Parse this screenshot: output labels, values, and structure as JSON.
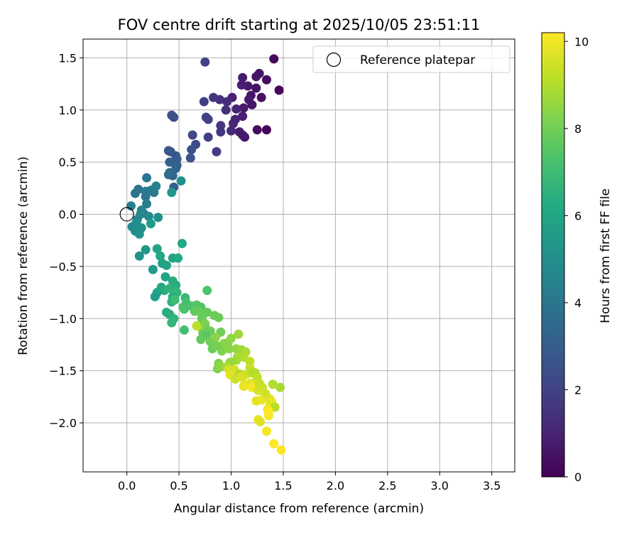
{
  "chart_data": {
    "type": "scatter",
    "title": "FOV centre drift starting at 2025/10/05 23:51:11",
    "xlabel": "Angular distance from reference (arcmin)",
    "ylabel": "Rotation from reference (arcmin)",
    "xlim": [
      -0.42,
      3.72
    ],
    "ylim": [
      -2.47,
      1.68
    ],
    "xticks": [
      0.0,
      0.5,
      1.0,
      1.5,
      2.0,
      2.5,
      3.0,
      3.5
    ],
    "xtick_labels": [
      "0.0",
      "0.5",
      "1.0",
      "1.5",
      "2.0",
      "2.5",
      "3.0",
      "3.5"
    ],
    "yticks": [
      -2.0,
      -1.5,
      -1.0,
      -0.5,
      0.0,
      0.5,
      1.0,
      1.5
    ],
    "ytick_labels": [
      "−2.0",
      "−1.5",
      "−1.0",
      "−0.5",
      "0.0",
      "0.5",
      "1.0",
      "1.5"
    ],
    "grid": true,
    "legend": {
      "position": "top-right",
      "label": "Reference platepar"
    },
    "reference_point": {
      "x": 0.0,
      "y": 0.0
    },
    "colorbar": {
      "label": "Hours from first FF file",
      "colormap": "viridis",
      "range": [
        0,
        10.2
      ],
      "ticks": [
        0,
        2,
        4,
        6,
        8,
        10
      ],
      "tick_labels": [
        "0",
        "2",
        "4",
        "6",
        "8",
        "10"
      ]
    },
    "series": [
      {
        "points": [
          {
            "x": 1.41,
            "y": 1.49,
            "c": 0.3
          },
          {
            "x": 1.46,
            "y": 1.19,
            "c": 0.2
          },
          {
            "x": 1.34,
            "y": 1.29,
            "c": 0.4
          },
          {
            "x": 1.27,
            "y": 1.35,
            "c": 0.5
          },
          {
            "x": 1.24,
            "y": 1.32,
            "c": 0.6
          },
          {
            "x": 1.11,
            "y": 1.31,
            "c": 0.8
          },
          {
            "x": 1.16,
            "y": 1.23,
            "c": 0.7
          },
          {
            "x": 1.1,
            "y": 1.24,
            "c": 0.9
          },
          {
            "x": 1.19,
            "y": 1.14,
            "c": 0.6
          },
          {
            "x": 1.24,
            "y": 1.21,
            "c": 0.5
          },
          {
            "x": 1.29,
            "y": 1.12,
            "c": 0.4
          },
          {
            "x": 1.2,
            "y": 1.05,
            "c": 0.6
          },
          {
            "x": 1.17,
            "y": 1.1,
            "c": 0.7
          },
          {
            "x": 1.12,
            "y": 1.02,
            "c": 0.8
          },
          {
            "x": 1.01,
            "y": 1.12,
            "c": 0.9
          },
          {
            "x": 1.05,
            "y": 1.01,
            "c": 1.0
          },
          {
            "x": 1.11,
            "y": 0.94,
            "c": 0.9
          },
          {
            "x": 1.02,
            "y": 0.87,
            "c": 1.1
          },
          {
            "x": 1.04,
            "y": 0.91,
            "c": 1.0
          },
          {
            "x": 1.0,
            "y": 0.8,
            "c": 1.2
          },
          {
            "x": 1.08,
            "y": 0.79,
            "c": 0.8
          },
          {
            "x": 1.13,
            "y": 0.74,
            "c": 0.6
          },
          {
            "x": 1.11,
            "y": 0.76,
            "c": 0.7
          },
          {
            "x": 1.25,
            "y": 0.81,
            "c": 0.3
          },
          {
            "x": 1.34,
            "y": 0.81,
            "c": 0.1
          },
          {
            "x": 0.89,
            "y": 1.1,
            "c": 1.4
          },
          {
            "x": 0.96,
            "y": 1.08,
            "c": 1.3
          },
          {
            "x": 0.95,
            "y": 1.0,
            "c": 1.4
          },
          {
            "x": 0.83,
            "y": 1.12,
            "c": 1.6
          },
          {
            "x": 0.75,
            "y": 1.46,
            "c": 2.0
          },
          {
            "x": 0.74,
            "y": 1.08,
            "c": 1.9
          },
          {
            "x": 0.76,
            "y": 0.93,
            "c": 2.0
          },
          {
            "x": 0.78,
            "y": 0.91,
            "c": 1.9
          },
          {
            "x": 0.9,
            "y": 0.85,
            "c": 1.6
          },
          {
            "x": 0.9,
            "y": 0.79,
            "c": 1.6
          },
          {
            "x": 0.78,
            "y": 0.74,
            "c": 1.9
          },
          {
            "x": 0.86,
            "y": 0.6,
            "c": 1.8
          },
          {
            "x": 0.43,
            "y": 0.95,
            "c": 2.4
          },
          {
            "x": 0.45,
            "y": 0.93,
            "c": 2.4
          },
          {
            "x": 0.63,
            "y": 0.76,
            "c": 2.2
          },
          {
            "x": 0.66,
            "y": 0.67,
            "c": 2.3
          },
          {
            "x": 0.62,
            "y": 0.62,
            "c": 2.5
          },
          {
            "x": 0.61,
            "y": 0.54,
            "c": 2.7
          },
          {
            "x": 0.4,
            "y": 0.61,
            "c": 2.8
          },
          {
            "x": 0.42,
            "y": 0.6,
            "c": 2.8
          },
          {
            "x": 0.47,
            "y": 0.56,
            "c": 2.7
          },
          {
            "x": 0.48,
            "y": 0.53,
            "c": 2.9
          },
          {
            "x": 0.46,
            "y": 0.5,
            "c": 3.1
          },
          {
            "x": 0.41,
            "y": 0.5,
            "c": 3.2
          },
          {
            "x": 0.48,
            "y": 0.47,
            "c": 3.1
          },
          {
            "x": 0.47,
            "y": 0.44,
            "c": 3.3
          },
          {
            "x": 0.41,
            "y": 0.4,
            "c": 3.5
          },
          {
            "x": 0.44,
            "y": 0.37,
            "c": 3.4
          },
          {
            "x": 0.4,
            "y": 0.38,
            "c": 3.5
          },
          {
            "x": 0.45,
            "y": 0.26,
            "c": 3.0
          },
          {
            "x": 0.52,
            "y": 0.32,
            "c": 5.1
          },
          {
            "x": 0.43,
            "y": 0.21,
            "c": 5.3
          },
          {
            "x": 0.19,
            "y": 0.35,
            "c": 4.0
          },
          {
            "x": 0.11,
            "y": 0.24,
            "c": 3.9
          },
          {
            "x": 0.08,
            "y": 0.2,
            "c": 3.9
          },
          {
            "x": 0.18,
            "y": 0.22,
            "c": 4.1
          },
          {
            "x": 0.23,
            "y": 0.23,
            "c": 4.3
          },
          {
            "x": 0.28,
            "y": 0.27,
            "c": 4.4
          },
          {
            "x": 0.26,
            "y": 0.21,
            "c": 4.2
          },
          {
            "x": 0.18,
            "y": 0.17,
            "c": 4.0
          },
          {
            "x": 0.19,
            "y": 0.1,
            "c": 4.3
          },
          {
            "x": 0.04,
            "y": 0.08,
            "c": 4.4
          },
          {
            "x": 0.14,
            "y": 0.04,
            "c": 4.6
          },
          {
            "x": 0.16,
            "y": 0.01,
            "c": 4.5
          },
          {
            "x": 0.13,
            "y": 0.0,
            "c": 4.7
          },
          {
            "x": 0.21,
            "y": -0.02,
            "c": 4.8
          },
          {
            "x": 0.3,
            "y": -0.03,
            "c": 5.0
          },
          {
            "x": 0.1,
            "y": -0.05,
            "c": 4.7
          },
          {
            "x": 0.09,
            "y": -0.08,
            "c": 4.9
          },
          {
            "x": 0.05,
            "y": -0.12,
            "c": 4.8
          },
          {
            "x": 0.08,
            "y": -0.16,
            "c": 5.0
          },
          {
            "x": 0.14,
            "y": -0.13,
            "c": 5.1
          },
          {
            "x": 0.12,
            "y": -0.19,
            "c": 5.1
          },
          {
            "x": 0.23,
            "y": -0.09,
            "c": 5.6
          },
          {
            "x": 0.53,
            "y": -0.28,
            "c": 6.1
          },
          {
            "x": 0.18,
            "y": -0.34,
            "c": 5.4
          },
          {
            "x": 0.12,
            "y": -0.4,
            "c": 5.2
          },
          {
            "x": 0.29,
            "y": -0.33,
            "c": 5.9
          },
          {
            "x": 0.32,
            "y": -0.4,
            "c": 6.0
          },
          {
            "x": 0.44,
            "y": -0.42,
            "c": 6.0
          },
          {
            "x": 0.49,
            "y": -0.42,
            "c": 6.1
          },
          {
            "x": 0.25,
            "y": -0.53,
            "c": 5.5
          },
          {
            "x": 0.34,
            "y": -0.47,
            "c": 5.8
          },
          {
            "x": 0.38,
            "y": -0.49,
            "c": 5.9
          },
          {
            "x": 0.37,
            "y": -0.6,
            "c": 6.0
          },
          {
            "x": 0.44,
            "y": -0.64,
            "c": 6.3
          },
          {
            "x": 0.33,
            "y": -0.7,
            "c": 6.1
          },
          {
            "x": 0.36,
            "y": -0.73,
            "c": 6.3
          },
          {
            "x": 0.41,
            "y": -0.71,
            "c": 6.6
          },
          {
            "x": 0.47,
            "y": -0.68,
            "c": 6.4
          },
          {
            "x": 0.48,
            "y": -0.75,
            "c": 6.7
          },
          {
            "x": 0.29,
            "y": -0.75,
            "c": 5.9
          },
          {
            "x": 0.27,
            "y": -0.79,
            "c": 5.6
          },
          {
            "x": 0.44,
            "y": -0.79,
            "c": 6.4
          },
          {
            "x": 0.43,
            "y": -0.84,
            "c": 6.5
          },
          {
            "x": 0.46,
            "y": -0.82,
            "c": 7.0
          },
          {
            "x": 0.56,
            "y": -0.8,
            "c": 6.9
          },
          {
            "x": 0.57,
            "y": -0.85,
            "c": 7.1
          },
          {
            "x": 0.54,
            "y": -0.89,
            "c": 7.2
          },
          {
            "x": 0.55,
            "y": -0.91,
            "c": 7.3
          },
          {
            "x": 0.62,
            "y": -0.88,
            "c": 7.3
          },
          {
            "x": 0.67,
            "y": -0.87,
            "c": 7.5
          },
          {
            "x": 0.71,
            "y": -0.89,
            "c": 7.4
          },
          {
            "x": 0.65,
            "y": -0.93,
            "c": 7.7
          },
          {
            "x": 0.69,
            "y": -0.93,
            "c": 7.8
          },
          {
            "x": 0.77,
            "y": -0.94,
            "c": 7.7
          },
          {
            "x": 0.77,
            "y": -0.73,
            "c": 7.3
          },
          {
            "x": 0.38,
            "y": -0.94,
            "c": 6.4
          },
          {
            "x": 0.41,
            "y": -0.96,
            "c": 6.3
          },
          {
            "x": 0.45,
            "y": -1.0,
            "c": 6.6
          },
          {
            "x": 0.43,
            "y": -1.04,
            "c": 6.7
          },
          {
            "x": 0.84,
            "y": -0.97,
            "c": 7.9
          },
          {
            "x": 0.88,
            "y": -0.99,
            "c": 7.9
          },
          {
            "x": 0.72,
            "y": -1.0,
            "c": 7.8
          },
          {
            "x": 0.7,
            "y": -1.08,
            "c": 8.9
          },
          {
            "x": 0.67,
            "y": -1.07,
            "c": 9.2
          },
          {
            "x": 0.75,
            "y": -1.05,
            "c": 8.2
          },
          {
            "x": 0.55,
            "y": -1.11,
            "c": 7.1
          },
          {
            "x": 0.73,
            "y": -1.14,
            "c": 7.8
          },
          {
            "x": 0.77,
            "y": -1.11,
            "c": 8.0
          },
          {
            "x": 0.8,
            "y": -1.12,
            "c": 7.9
          },
          {
            "x": 0.76,
            "y": -1.16,
            "c": 7.6
          },
          {
            "x": 0.9,
            "y": -1.13,
            "c": 8.0
          },
          {
            "x": 0.71,
            "y": -1.2,
            "c": 7.7
          },
          {
            "x": 0.8,
            "y": -1.22,
            "c": 8.0
          },
          {
            "x": 0.85,
            "y": -1.18,
            "c": 8.4
          },
          {
            "x": 0.82,
            "y": -1.29,
            "c": 7.9
          },
          {
            "x": 0.93,
            "y": -1.24,
            "c": 8.4
          },
          {
            "x": 0.97,
            "y": -1.23,
            "c": 8.3
          },
          {
            "x": 1.07,
            "y": -1.15,
            "c": 8.7
          },
          {
            "x": 1.0,
            "y": -1.19,
            "c": 8.5
          },
          {
            "x": 0.91,
            "y": -1.31,
            "c": 8.2
          },
          {
            "x": 0.86,
            "y": -1.26,
            "c": 8.1
          },
          {
            "x": 0.98,
            "y": -1.29,
            "c": 8.4
          },
          {
            "x": 1.05,
            "y": -1.29,
            "c": 8.5
          },
          {
            "x": 1.1,
            "y": -1.3,
            "c": 8.7
          },
          {
            "x": 1.14,
            "y": -1.32,
            "c": 8.9
          },
          {
            "x": 1.12,
            "y": -1.37,
            "c": 9.0
          },
          {
            "x": 1.18,
            "y": -1.41,
            "c": 9.2
          },
          {
            "x": 1.06,
            "y": -1.37,
            "c": 8.9
          },
          {
            "x": 1.05,
            "y": -1.4,
            "c": 8.8
          },
          {
            "x": 0.99,
            "y": -1.42,
            "c": 8.6
          },
          {
            "x": 0.88,
            "y": -1.43,
            "c": 8.3
          },
          {
            "x": 0.87,
            "y": -1.48,
            "c": 8.2
          },
          {
            "x": 0.9,
            "y": -1.46,
            "c": 8.5
          },
          {
            "x": 0.96,
            "y": -1.46,
            "c": 8.9
          },
          {
            "x": 0.98,
            "y": -1.49,
            "c": 9.6
          },
          {
            "x": 1.03,
            "y": -1.49,
            "c": 9.5
          },
          {
            "x": 0.99,
            "y": -1.54,
            "c": 9.8
          },
          {
            "x": 1.08,
            "y": -1.53,
            "c": 9.1
          },
          {
            "x": 1.04,
            "y": -1.58,
            "c": 9.4
          },
          {
            "x": 1.1,
            "y": -1.56,
            "c": 9.6
          },
          {
            "x": 1.14,
            "y": -1.54,
            "c": 9.5
          },
          {
            "x": 1.18,
            "y": -1.47,
            "c": 9.3
          },
          {
            "x": 1.2,
            "y": -1.52,
            "c": 9.1
          },
          {
            "x": 1.23,
            "y": -1.52,
            "c": 9.0
          },
          {
            "x": 1.12,
            "y": -1.65,
            "c": 9.9
          },
          {
            "x": 1.13,
            "y": -1.63,
            "c": 9.8
          },
          {
            "x": 1.17,
            "y": -1.64,
            "c": 10.0
          },
          {
            "x": 1.19,
            "y": -1.62,
            "c": 9.7
          },
          {
            "x": 1.2,
            "y": -1.66,
            "c": 10.1
          },
          {
            "x": 1.25,
            "y": -1.56,
            "c": 9.2
          },
          {
            "x": 1.27,
            "y": -1.62,
            "c": 9.3
          },
          {
            "x": 1.26,
            "y": -1.69,
            "c": 9.6
          },
          {
            "x": 1.24,
            "y": -1.79,
            "c": 9.8
          },
          {
            "x": 1.29,
            "y": -1.78,
            "c": 9.9
          },
          {
            "x": 1.3,
            "y": -1.66,
            "c": 9.4
          },
          {
            "x": 1.33,
            "y": -1.72,
            "c": 9.5
          },
          {
            "x": 1.37,
            "y": -1.77,
            "c": 9.7
          },
          {
            "x": 1.39,
            "y": -1.8,
            "c": 9.9
          },
          {
            "x": 1.37,
            "y": -1.83,
            "c": 9.8
          },
          {
            "x": 1.4,
            "y": -1.63,
            "c": 9.0
          },
          {
            "x": 1.47,
            "y": -1.66,
            "c": 8.9
          },
          {
            "x": 1.42,
            "y": -1.85,
            "c": 9.1
          },
          {
            "x": 1.35,
            "y": -1.87,
            "c": 10.0
          },
          {
            "x": 1.36,
            "y": -1.93,
            "c": 10.1
          },
          {
            "x": 1.36,
            "y": -1.89,
            "c": 10.2
          },
          {
            "x": 1.26,
            "y": -1.97,
            "c": 9.9
          },
          {
            "x": 1.28,
            "y": -1.99,
            "c": 9.7
          },
          {
            "x": 1.34,
            "y": -2.08,
            "c": 10.1
          },
          {
            "x": 1.41,
            "y": -2.2,
            "c": 10.2
          },
          {
            "x": 1.48,
            "y": -2.26,
            "c": 10.2
          }
        ]
      }
    ]
  }
}
